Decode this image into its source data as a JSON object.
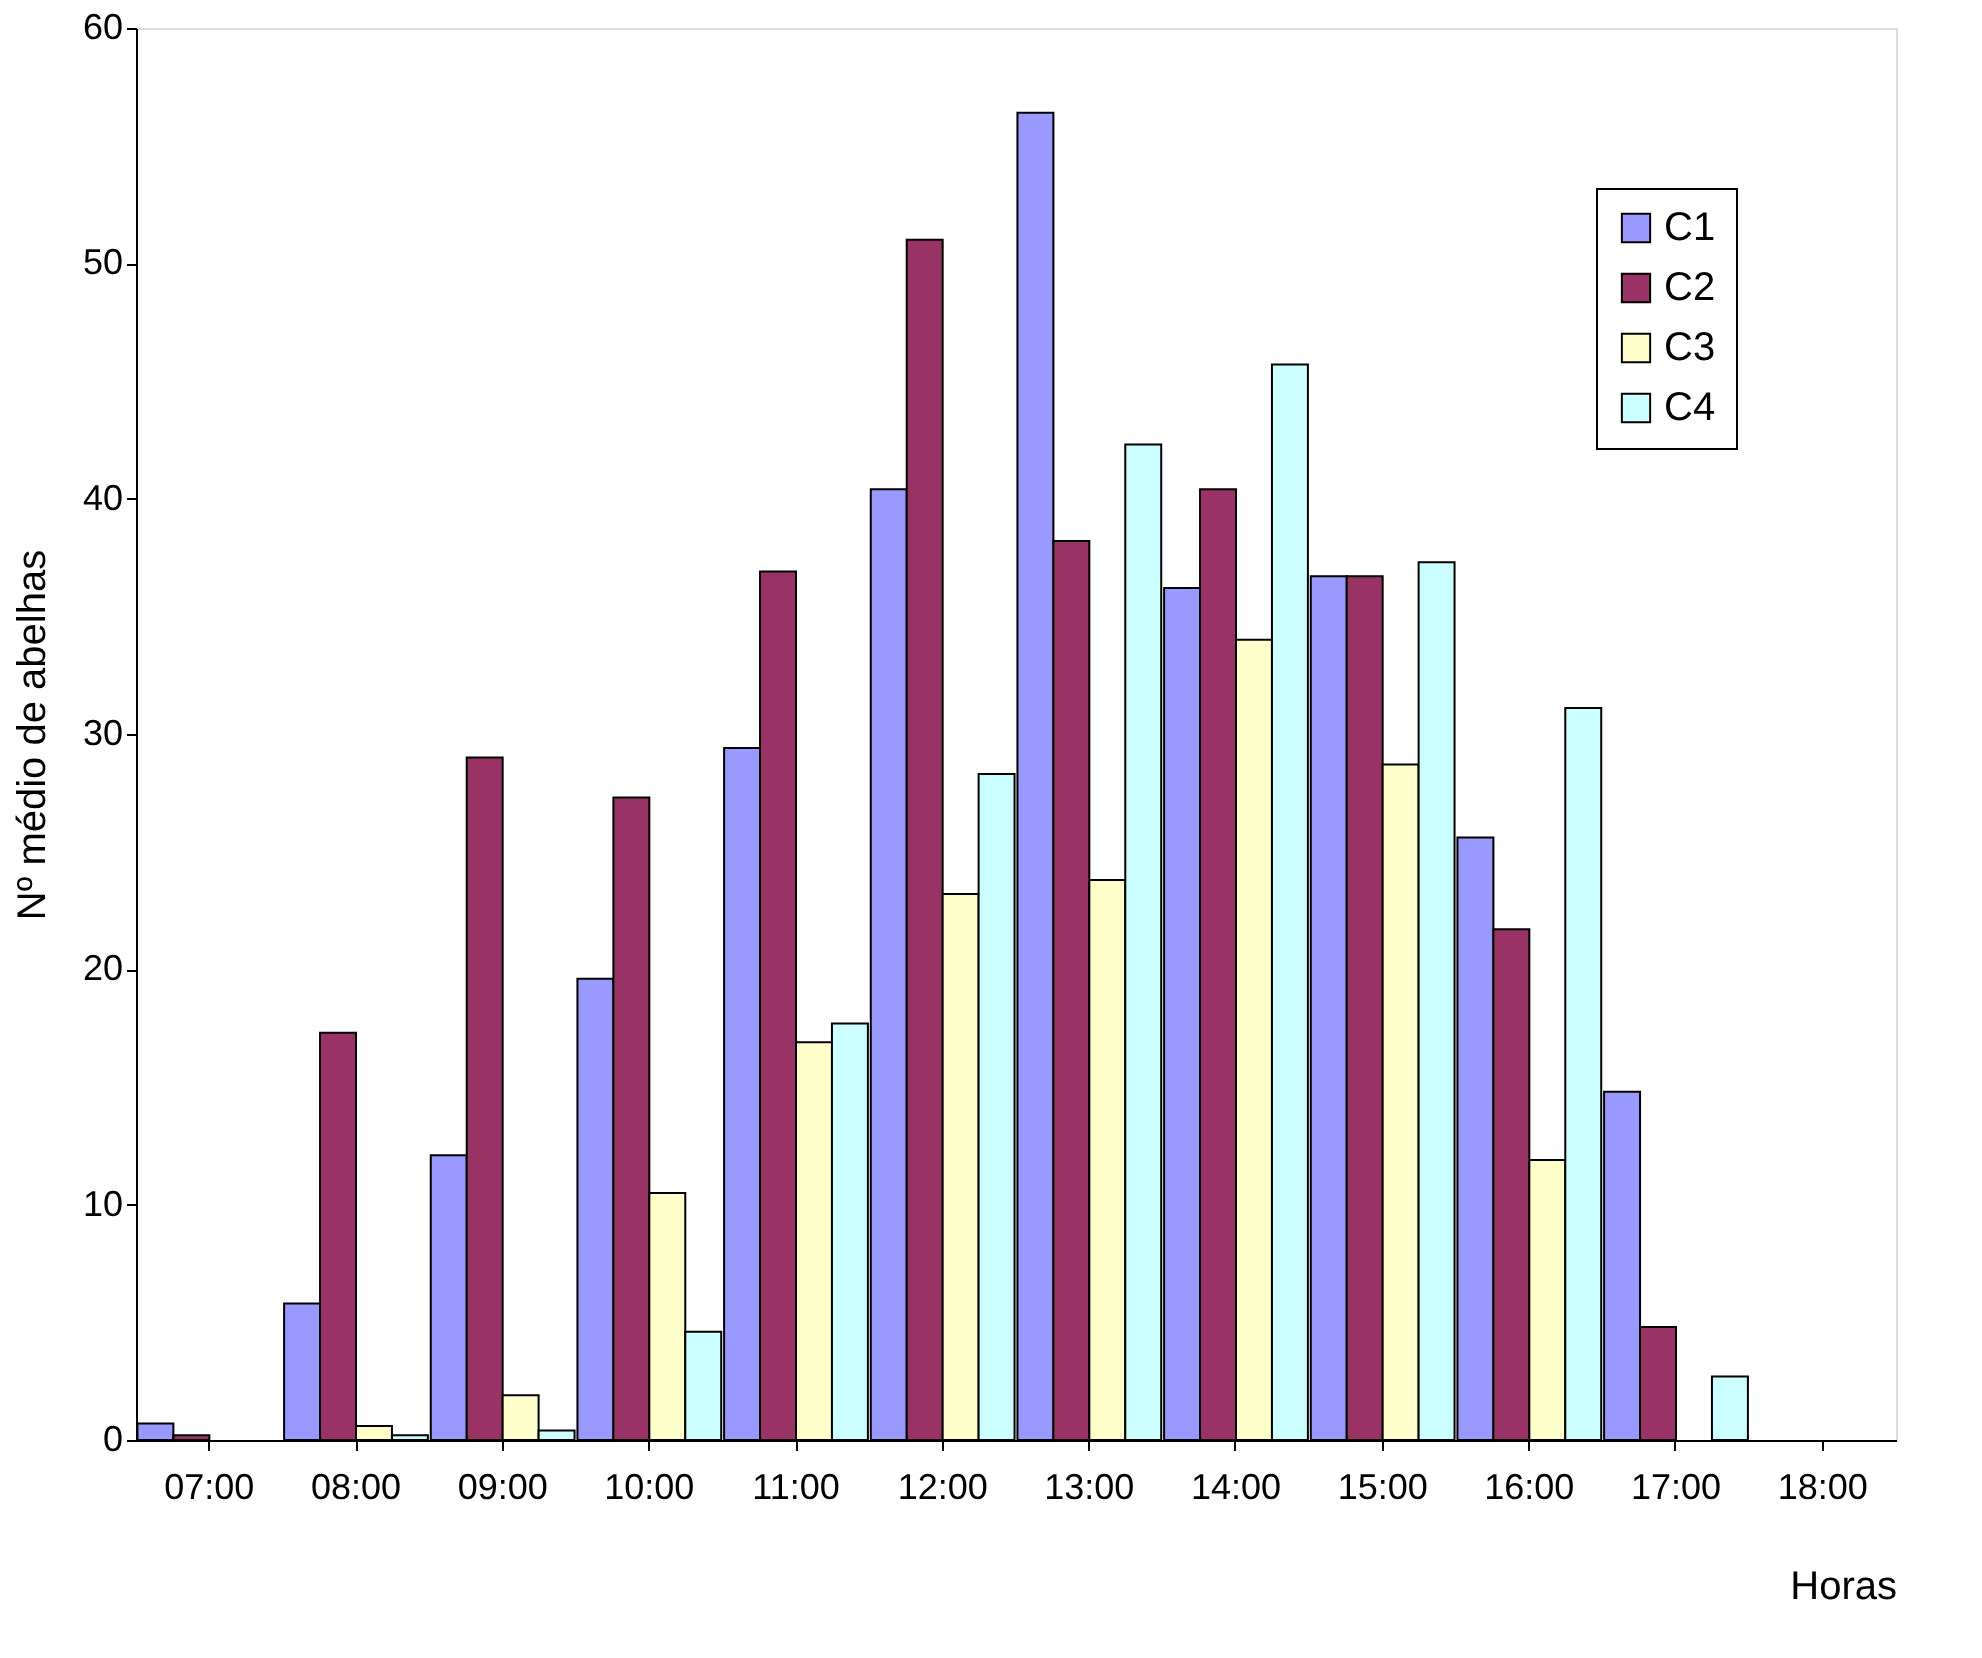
{
  "chart_data": {
    "type": "bar",
    "xlabel": "Horas",
    "ylabel": "Nº médio de abelhas",
    "categories": [
      "07:00",
      "08:00",
      "09:00",
      "10:00",
      "11:00",
      "12:00",
      "13:00",
      "14:00",
      "15:00",
      "16:00",
      "17:00",
      "18:00"
    ],
    "series": [
      {
        "name": "C1",
        "color": "#9999ff",
        "values": [
          0.7,
          5.8,
          12.1,
          19.6,
          29.4,
          40.4,
          56.4,
          36.2,
          36.7,
          25.6,
          14.8,
          null
        ]
      },
      {
        "name": "C2",
        "color": "#993366",
        "values": [
          0.2,
          17.3,
          29.0,
          27.3,
          36.9,
          51.0,
          38.2,
          40.4,
          36.7,
          21.7,
          4.8,
          null
        ]
      },
      {
        "name": "C3",
        "color": "#ffffcc",
        "values": [
          null,
          0.6,
          1.9,
          10.5,
          16.9,
          23.2,
          23.8,
          34.0,
          28.7,
          11.9,
          null,
          null
        ]
      },
      {
        "name": "C4",
        "color": "#ccffff",
        "values": [
          null,
          0.2,
          0.4,
          4.6,
          17.7,
          28.3,
          42.3,
          45.7,
          37.3,
          31.1,
          2.7,
          null
        ]
      }
    ],
    "ylim": [
      0,
      60
    ],
    "yticks": [
      0,
      10,
      20,
      30,
      40,
      50,
      60
    ],
    "grid": false,
    "legend": "top right"
  }
}
